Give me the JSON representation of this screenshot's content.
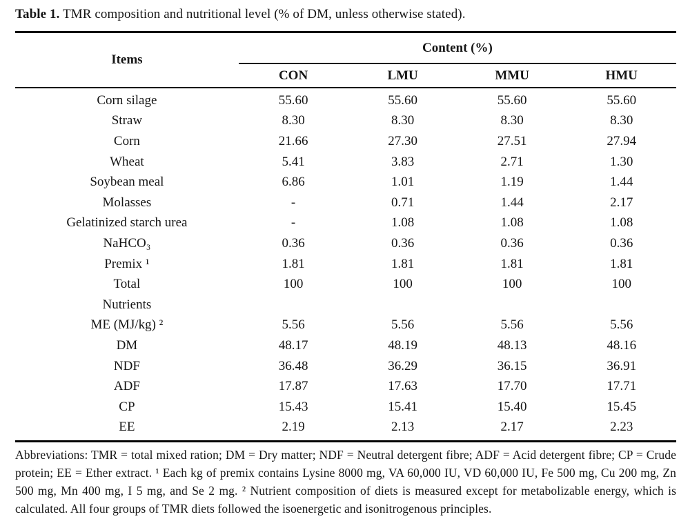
{
  "title": {
    "label": "Table 1.",
    "text": "TMR composition and nutritional level (% of DM, unless otherwise stated)."
  },
  "table": {
    "items_header": "Items",
    "content_header": "Content (%)",
    "columns": [
      "CON",
      "LMU",
      "MMU",
      "HMU"
    ],
    "rows": [
      {
        "item": "Corn silage",
        "values": [
          "55.60",
          "55.60",
          "55.60",
          "55.60"
        ]
      },
      {
        "item": "Straw",
        "values": [
          "8.30",
          "8.30",
          "8.30",
          "8.30"
        ]
      },
      {
        "item": "Corn",
        "values": [
          "21.66",
          "27.30",
          "27.51",
          "27.94"
        ]
      },
      {
        "item": "Wheat",
        "values": [
          "5.41",
          "3.83",
          "2.71",
          "1.30"
        ]
      },
      {
        "item": "Soybean meal",
        "values": [
          "6.86",
          "1.01",
          "1.19",
          "1.44"
        ]
      },
      {
        "item": "Molasses",
        "values": [
          "-",
          "0.71",
          "1.44",
          "2.17"
        ]
      },
      {
        "item": "Gelatinized starch urea",
        "values": [
          "-",
          "1.08",
          "1.08",
          "1.08"
        ]
      },
      {
        "item": "NaHCO₃",
        "values": [
          "0.36",
          "0.36",
          "0.36",
          "0.36"
        ]
      },
      {
        "item": "Premix ¹",
        "values": [
          "1.81",
          "1.81",
          "1.81",
          "1.81"
        ]
      },
      {
        "item": "Total",
        "values": [
          "100",
          "100",
          "100",
          "100"
        ]
      },
      {
        "item": "Nutrients",
        "values": [
          "",
          "",
          "",
          ""
        ]
      },
      {
        "item": "ME (MJ/kg) ²",
        "values": [
          "5.56",
          "5.56",
          "5.56",
          "5.56"
        ]
      },
      {
        "item": "DM",
        "values": [
          "48.17",
          "48.19",
          "48.13",
          "48.16"
        ]
      },
      {
        "item": "NDF",
        "values": [
          "36.48",
          "36.29",
          "36.15",
          "36.91"
        ]
      },
      {
        "item": "ADF",
        "values": [
          "17.87",
          "17.63",
          "17.70",
          "17.71"
        ]
      },
      {
        "item": "CP",
        "values": [
          "15.43",
          "15.41",
          "15.40",
          "15.45"
        ]
      },
      {
        "item": "EE",
        "values": [
          "2.19",
          "2.13",
          "2.17",
          "2.23"
        ]
      }
    ]
  },
  "footnote": "Abbreviations: TMR = total mixed ration; DM = Dry matter; NDF = Neutral detergent fibre; ADF = Acid detergent fibre; CP = Crude protein; EE = Ether extract. ¹ Each kg of premix contains Lysine 8000 mg, VA 60,000 IU, VD 60,000 IU, Fe 500 mg, Cu 200 mg, Zn 500 mg, Mn 400 mg, I 5 mg, and Se 2 mg. ² Nutrient composition of diets is measured except for metabolizable energy, which is calculated. All four groups of TMR diets followed the isoenergetic and isonitrogenous principles.",
  "colors": {
    "text": "#161616",
    "rule": "#000000",
    "background": "#ffffff"
  }
}
